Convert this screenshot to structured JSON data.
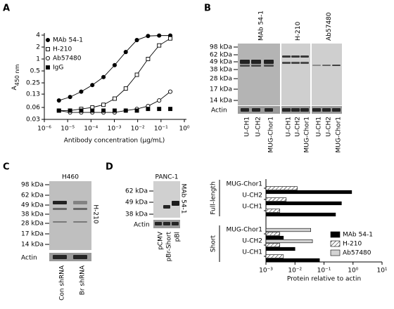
{
  "panels": [
    "A",
    "B",
    "C",
    "D"
  ],
  "chart_data": [
    {
      "type": "line",
      "ylabel": "A",
      "ylabel_sub": "450 nm",
      "xlabel": "Antibody concentration (μg/mL)",
      "log_x": true,
      "log_y": true,
      "xlim": [
        1e-06,
        1
      ],
      "ylim": [
        0.03,
        4
      ],
      "xticks": [
        {
          "value": 1e-06,
          "label": "10⁻⁶"
        },
        {
          "value": 1e-05,
          "label": "10⁻⁵"
        },
        {
          "value": 0.0001,
          "label": "10⁻⁴"
        },
        {
          "value": 0.001,
          "label": "10⁻³"
        },
        {
          "value": 0.01,
          "label": "10⁻²"
        },
        {
          "value": 0.1,
          "label": "10⁻¹"
        },
        {
          "value": 1,
          "label": "10⁰"
        }
      ],
      "yticks": [
        0.03,
        0.06,
        0.13,
        0.25,
        0.5,
        1,
        2,
        4
      ],
      "legend": "top-left",
      "x": [
        4.23e-06,
        1.27e-05,
        3.81e-05,
        0.000114,
        0.000343,
        0.00103,
        0.00309,
        0.00926,
        0.0278,
        0.0833,
        0.25
      ],
      "series": [
        {
          "name": "MAb 54-1",
          "color": "#000000",
          "marker": "filled-circle",
          "line": true,
          "values": [
            0.09,
            0.11,
            0.15,
            0.22,
            0.35,
            0.7,
            1.5,
            3,
            3.8,
            3.9,
            3.9
          ]
        },
        {
          "name": "H-210",
          "color": "#000000",
          "marker": "open-square",
          "line": true,
          "values": [
            0.05,
            0.05,
            0.055,
            0.06,
            0.07,
            0.1,
            0.18,
            0.4,
            1.0,
            2.2,
            3.3
          ]
        },
        {
          "name": "Ab57480",
          "color": "#000000",
          "marker": "open-circle",
          "line": true,
          "values": [
            0.05,
            0.045,
            0.045,
            0.045,
            0.045,
            0.045,
            0.05,
            0.055,
            0.065,
            0.09,
            0.15
          ]
        },
        {
          "name": "IgG",
          "color": "#000000",
          "marker": "filled-square",
          "line": false,
          "values": [
            0.05,
            0.05,
            0.05,
            0.05,
            0.05,
            0.05,
            0.05,
            0.05,
            0.055,
            0.055,
            0.055
          ]
        }
      ]
    },
    {
      "type": "hbar",
      "xlabel": "Protein relative to actin",
      "log_x": true,
      "xlim": [
        0.001,
        10
      ],
      "xticks": [
        {
          "value": 0.001,
          "label": "10⁻³"
        },
        {
          "value": 0.01,
          "label": "10⁻²"
        },
        {
          "value": 0.1,
          "label": "10⁻¹"
        },
        {
          "value": 1,
          "label": "10⁰"
        },
        {
          "value": 10,
          "label": "10¹"
        }
      ],
      "groups": [
        {
          "name": "Full-length",
          "categories": [
            "MUG-Chor1",
            "U-CH2",
            "U-CH1"
          ]
        },
        {
          "name": "Short",
          "categories": [
            "MUG-Chor1",
            "U-CH2",
            "U-CH1"
          ]
        }
      ],
      "legend": "lower-right",
      "series": [
        {
          "name": "MAb 54-1",
          "color": "#000000",
          "hatch": false,
          "values": [
            0.9,
            0.4,
            0.25,
            0.004,
            0.01,
            0.07
          ]
        },
        {
          "name": "H-210",
          "color": "#ffffff",
          "hatch": true,
          "values": [
            0.012,
            0.005,
            0.003,
            0.003,
            0.003,
            0.004
          ]
        },
        {
          "name": "Ab57480",
          "color": "#d3d3d3",
          "hatch": false,
          "values": [
            null,
            null,
            null,
            0.035,
            0.04,
            null
          ]
        }
      ]
    }
  ],
  "blots": {
    "B": {
      "antibodies": [
        "MAb 54-1",
        "H-210",
        "Ab57480"
      ],
      "markers": [
        "98 kDa",
        "62 kDa",
        "49 kDa",
        "38 kDa",
        "28 kDa",
        "17 kDa",
        "14 kDa"
      ],
      "lanes": [
        "U-CH1",
        "U-CH2",
        "MUG-Chor1"
      ],
      "loading": "Actin"
    },
    "C": {
      "cell_line": "H460",
      "antibody": "H-210",
      "markers": [
        "98 kDa",
        "62 kDa",
        "49 kDa",
        "38 kDa",
        "28 kDa",
        "17 kDa",
        "14 kDa"
      ],
      "lanes": [
        "Con shRNA",
        "Br shRNA"
      ],
      "loading": "Actin"
    },
    "D": {
      "cell_line": "PANC-1",
      "antibody": "MAb 54-1",
      "markers": [
        "62 kDa",
        "49 kDa",
        "38 kDa"
      ],
      "lanes": [
        "pCMV",
        "pBr-Short",
        "pBl"
      ],
      "loading": "Actin"
    }
  }
}
